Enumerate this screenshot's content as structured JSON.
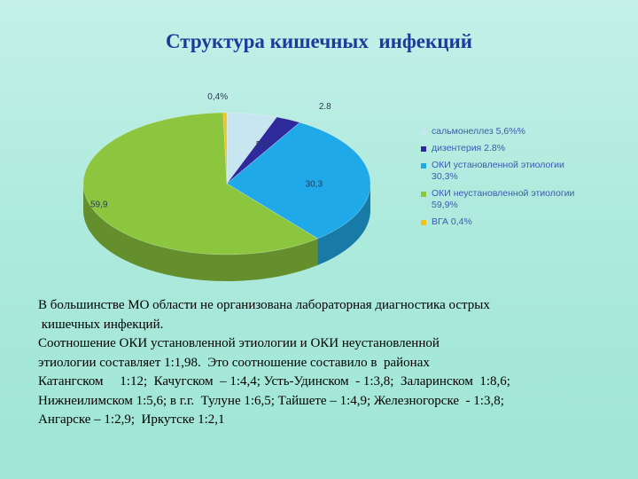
{
  "title": "Структура кишечных  инфекций",
  "chart_data": {
    "type": "pie",
    "title": "Структура кишечных  инфекций",
    "slices": [
      {
        "label": "сальмонеллез 5,6%%",
        "value": 5.6,
        "data_label": "5,6",
        "color": "#c8e6f0"
      },
      {
        "label": "дизентерия 2.8%",
        "value": 2.8,
        "data_label": "2.8",
        "color": "#2e2a9c"
      },
      {
        "label": "ОКИ установленной этиологии 30,3%",
        "value": 30.3,
        "data_label": "30,3",
        "color": "#20a9e8"
      },
      {
        "label": "ОКИ неустановленной этиологии 59,9%",
        "value": 59.9,
        "data_label": "59,9",
        "color": "#8cc63f"
      },
      {
        "label": "ВГА 0,4%",
        "value": 0.4,
        "data_label": "0,4%",
        "color": "#f5c21b"
      }
    ],
    "legend_position": "right"
  },
  "legend_lines": [
    [
      "сальмонеллез 5,6%%"
    ],
    [
      "дизентерия 2.8%"
    ],
    [
      "ОКИ установленной этиологии",
      "30,3%"
    ],
    [
      "ОКИ неустановленной этиологии",
      "59,9%"
    ],
    [
      "ВГА 0,4%"
    ]
  ],
  "body_lines": [
    "В большинстве МО области не организована лабораторная диагностика острых",
    " кишечных инфекций.",
    "Соотношение ОКИ установленной этиологии и ОКИ неустановленной",
    "этиологии составляет 1:1,98.  Это соотношение составило в  районах",
    "Катангском     1:12;  Качугском  – 1:4,4; Усть-Удинском  - 1:3,8;  Заларинском  1:8,6;",
    "Нижнеилимском 1:5,6; в г.г.  Тулуне 1:6,5; Тайшете – 1:4,9; Железногорске  - 1:3,8;",
    "Ангарске – 1:2,9;  Иркутске 1:2,1"
  ]
}
